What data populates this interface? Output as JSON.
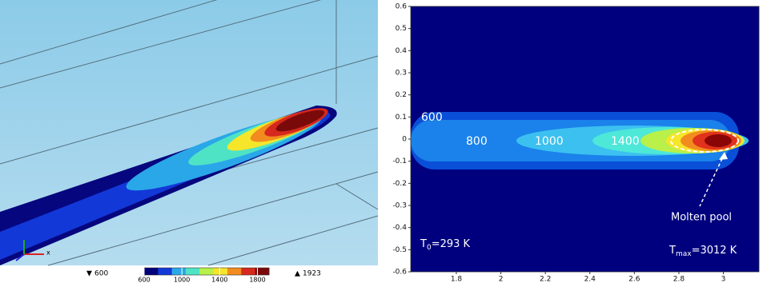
{
  "left_panel": {
    "colorbar": {
      "lim": [
        600,
        1923
      ],
      "ticks": [
        600,
        1000,
        1400,
        1800
      ],
      "min": 600,
      "max": 1923,
      "colors": [
        "#00007a",
        "#1238d8",
        "#2aa7e8",
        "#4fe3c6",
        "#b9f04a",
        "#f5e62a",
        "#f28c1e",
        "#d6281c",
        "#7a0a0a"
      ]
    },
    "axis_label": "x"
  },
  "right_panel": {
    "xlim": [
      1.595,
      3.16
    ],
    "ylim": [
      -0.6,
      0.6
    ],
    "xticks": [
      1.8,
      2,
      2.2,
      2.4,
      2.6,
      2.8,
      3
    ],
    "yticks": [
      0.6,
      0.5,
      0.4,
      0.3,
      0.2,
      0.1,
      0,
      -0.1,
      -0.2,
      -0.3,
      -0.4,
      -0.5,
      -0.6
    ],
    "contour_labels": [
      "600",
      "800",
      "1000",
      "1400"
    ],
    "ambient": {
      "symbol": "T",
      "subscript": "0",
      "text": "=293 K"
    },
    "pool_label": "Molten pool",
    "peak": {
      "symbol": "T",
      "subscript": "max",
      "text": "=3012 K"
    }
  }
}
